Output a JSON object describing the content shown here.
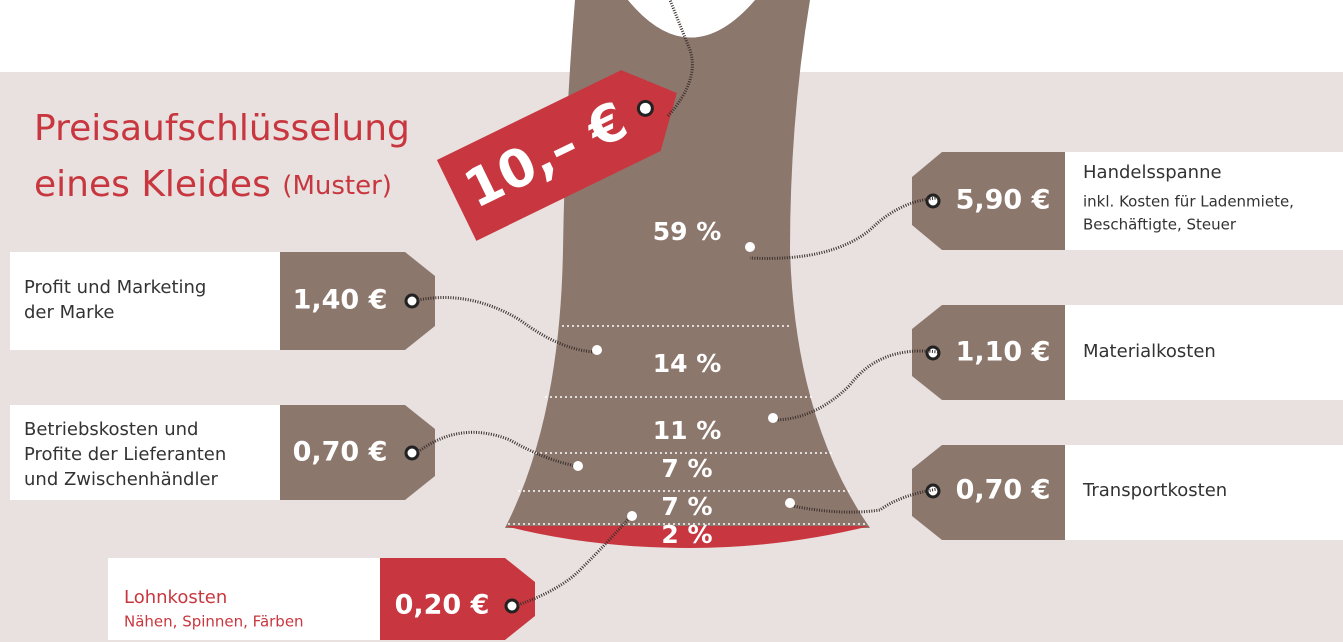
{
  "title": {
    "line1": "Preisaufschlüsselung",
    "line2": "eines Kleides",
    "note": "(Muster)"
  },
  "price_tag": "10,– €",
  "segments": [
    {
      "percent": "59 %",
      "price": "5,90 €",
      "label_lines": [
        "Handelsspanne"
      ],
      "detail_lines": [
        "inkl. Kosten für Ladenmiete,",
        "Beschäftigte, Steuer"
      ]
    },
    {
      "percent": "14 %",
      "price": "1,40 €",
      "label_lines": [
        "Profit und Marketing",
        "der Marke"
      ]
    },
    {
      "percent": "11 %",
      "price": "1,10 €",
      "label_lines": [
        "Materialkosten"
      ]
    },
    {
      "percent": "7 %",
      "price": "0,70 €",
      "label_lines": [
        "Betriebskosten und",
        "Profite der Lieferanten",
        "und Zwischenhändler"
      ]
    },
    {
      "percent": "7 %",
      "price": "0,70 €",
      "label_lines": [
        "Transportkosten"
      ]
    },
    {
      "percent": "2 %",
      "price": "0,20 €",
      "label_lines": [
        "Lohnkosten"
      ],
      "detail_lines": [
        "Nähen, Spinnen, Färben"
      ]
    }
  ]
}
